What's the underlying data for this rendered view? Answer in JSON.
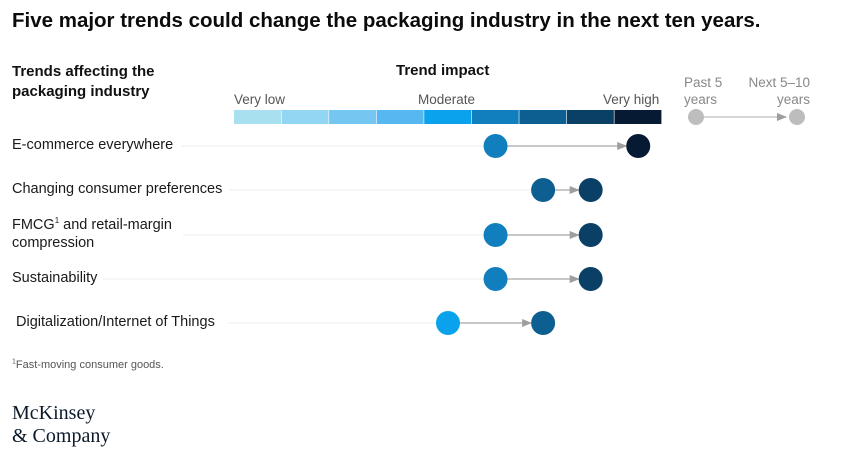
{
  "title": "Five major trends could change the packaging industry in the next ten years.",
  "labels_header": [
    "Trends affecting the",
    "packaging industry"
  ],
  "footnote": {
    "marker": "1",
    "text": "Fast-moving consumer goods."
  },
  "logo": [
    "McKinsey",
    "& Company"
  ],
  "chart_data": {
    "type": "dumbbell",
    "title": "",
    "scale": {
      "title": "Trend impact",
      "labels": [
        "Very low",
        "Moderate",
        "Very high"
      ],
      "levels": 9,
      "colors": [
        "#a8e0f0",
        "#92d6f4",
        "#76c6f2",
        "#57b7f1",
        "#0aa2ec",
        "#117fbd",
        "#0e5f91",
        "#0a3f66",
        "#071a33"
      ]
    },
    "legend": {
      "from_label": [
        "Past 5",
        "years"
      ],
      "to_label": [
        "Next 5–10",
        "years"
      ],
      "color": "#bdbdbd"
    },
    "trends": [
      {
        "label": [
          "E-commerce everywhere"
        ],
        "sup": "",
        "from": 6,
        "to": 9
      },
      {
        "label": [
          "Changing consumer preferences"
        ],
        "sup": "",
        "from": 7,
        "to": 8
      },
      {
        "label": [
          "FMCG",
          " and retail-margin",
          "compression"
        ],
        "sup": "1",
        "from": 6,
        "to": 8
      },
      {
        "label": [
          "Sustainability"
        ],
        "sup": "",
        "from": 6,
        "to": 8
      },
      {
        "label": [
          "Digitalization/Internet of Things"
        ],
        "sup": "",
        "from": 5,
        "to": 7
      }
    ]
  }
}
